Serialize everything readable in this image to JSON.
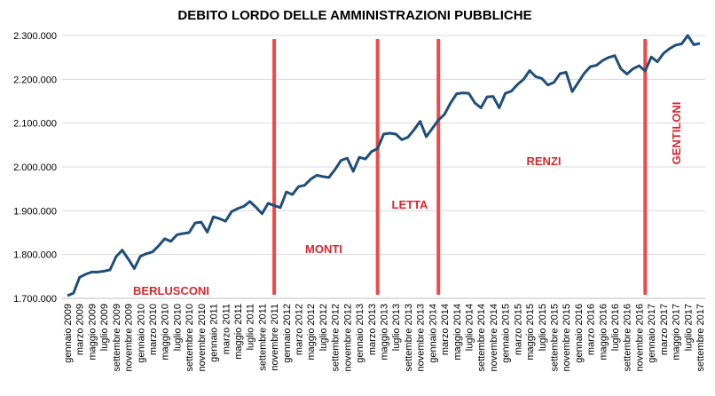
{
  "chart_data": {
    "type": "line",
    "title": "DEBITO LORDO DELLE AMMINISTRAZIONI PUBBLICHE",
    "categories": [
      "gennaio 2009",
      null,
      "marzo 2009",
      null,
      "maggio 2009",
      null,
      "luglio 2009",
      null,
      "settembre 2009",
      null,
      "novembre 2009",
      null,
      "gennaio 2010",
      null,
      "marzo 2010",
      null,
      "maggio 2010",
      null,
      "luglio 2010",
      null,
      "settembre 2010",
      null,
      "novembre 2010",
      null,
      "gennaio 2011",
      null,
      "marzo 2011",
      null,
      "maggio 2011",
      null,
      "luglio 2011",
      null,
      "settembre 2011",
      null,
      "novembre 2011",
      null,
      "gennaio 2012",
      null,
      "marzo 2012",
      null,
      "maggio 2012",
      null,
      "luglio 2012",
      null,
      "settembre 2012",
      null,
      "novembre 2012",
      null,
      "gennaio 2013",
      null,
      "marzo 2013",
      null,
      "maggio 2013",
      null,
      "luglio 2013",
      null,
      "settembre 2013",
      null,
      "novembre 2013",
      null,
      "gennaio 2014",
      null,
      "marzo 2014",
      null,
      "maggio 2014",
      null,
      "luglio 2014",
      null,
      "settembre 2014",
      null,
      "novembre 2014",
      null,
      "gennaio 2015",
      null,
      "marzo 2015",
      null,
      "maggio 2015",
      null,
      "luglio 2015",
      null,
      "settembre 2015",
      null,
      "novembre 2015",
      null,
      "gennaio 2016",
      null,
      "marzo 2016",
      null,
      "maggio 2016",
      null,
      "luglio 2016",
      null,
      "settembre 2016",
      null,
      "novembre 2016",
      null,
      "gennaio 2017",
      null,
      "marzo 2017",
      null,
      "maggio 2017",
      null,
      "luglio 2017",
      null,
      "settembre 2017"
    ],
    "series": [
      {
        "name": "Debito lordo",
        "color": "#1f4e79",
        "values": [
          1706000,
          1712000,
          1748000,
          1755000,
          1760000,
          1760000,
          1762000,
          1765000,
          1795000,
          1810000,
          1790000,
          1768000,
          1796000,
          1802000,
          1806000,
          1820000,
          1836000,
          1830000,
          1845000,
          1848000,
          1850000,
          1872000,
          1874000,
          1851000,
          1886000,
          1882000,
          1876000,
          1898000,
          1905000,
          1910000,
          1921000,
          1908000,
          1893000,
          1917000,
          1912000,
          1907000,
          1943000,
          1937000,
          1955000,
          1958000,
          1972000,
          1981000,
          1978000,
          1976000,
          1994000,
          2015000,
          2020000,
          1990000,
          2022000,
          2018000,
          2035000,
          2042000,
          2075000,
          2077000,
          2075000,
          2062000,
          2068000,
          2085000,
          2104000,
          2069000,
          2088000,
          2107000,
          2120000,
          2146000,
          2167000,
          2169000,
          2168000,
          2146000,
          2135000,
          2160000,
          2161000,
          2135000,
          2168000,
          2173000,
          2188000,
          2200000,
          2220000,
          2206000,
          2202000,
          2187000,
          2193000,
          2213000,
          2216000,
          2172000,
          2193000,
          2214000,
          2229000,
          2232000,
          2243000,
          2250000,
          2254000,
          2224000,
          2212000,
          2224000,
          2231000,
          2219000,
          2251000,
          2240000,
          2259000,
          2270000,
          2278000,
          2281000,
          2300000,
          2279000,
          2282000
        ]
      }
    ],
    "ylim": [
      1700000,
      2300000
    ],
    "yticks": [
      {
        "value": 1700000,
        "label": "1.700.000"
      },
      {
        "value": 1800000,
        "label": "1.800.000"
      },
      {
        "value": 1900000,
        "label": "1.900.000"
      },
      {
        "value": 2000000,
        "label": "2.000.000"
      },
      {
        "value": 2100000,
        "label": "2.100.000"
      },
      {
        "value": 2200000,
        "label": "2.200.000"
      },
      {
        "value": 2300000,
        "label": "2.300.000"
      }
    ],
    "grid": true,
    "annotations": [
      "BERLUSCONI",
      "MONTI",
      "LETTA",
      "RENZI",
      "GENTILONI"
    ]
  }
}
